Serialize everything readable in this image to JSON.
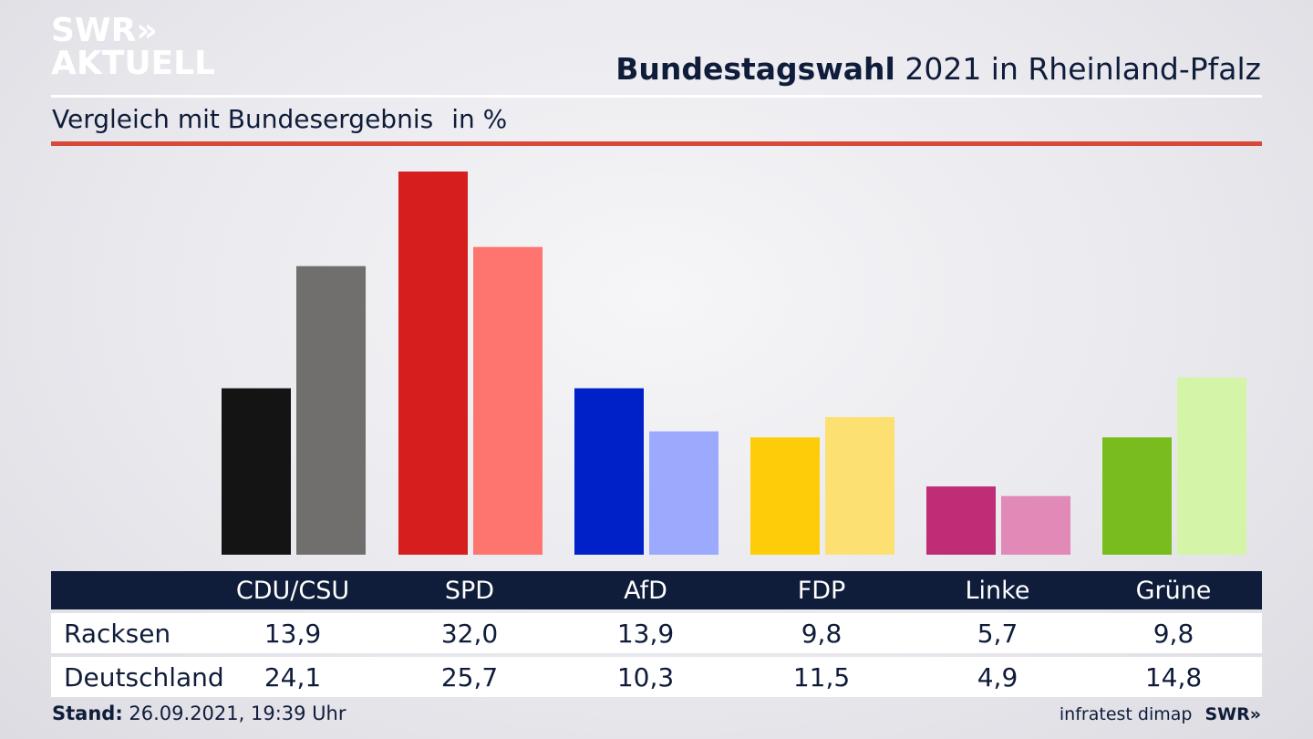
{
  "logo": {
    "line1": "SWR»",
    "line2": "AKTUELL"
  },
  "header": {
    "title_bold": "Bundestagswahl",
    "title_rest": " 2021 in Rheinland-Pfalz",
    "subtitle": "Vergleich mit Bundesergebnis",
    "unit": "in %"
  },
  "chart_data": {
    "type": "bar",
    "categories": [
      "CDU/CSU",
      "SPD",
      "AfD",
      "FDP",
      "Linke",
      "Grüne"
    ],
    "series": [
      {
        "name": "Racksen",
        "values": [
          13.9,
          32.0,
          13.9,
          9.8,
          5.7,
          9.8
        ]
      },
      {
        "name": "Deutschland",
        "values": [
          24.1,
          25.7,
          10.3,
          11.5,
          4.9,
          14.8
        ]
      }
    ],
    "colors": {
      "Racksen": [
        "#141414",
        "#d61e1e",
        "#0020c8",
        "#ffcc0a",
        "#be2d76",
        "#78bc1e"
      ],
      "Deutschland": [
        "#706f6e",
        "#fe7570",
        "#9caafe",
        "#fde072",
        "#e18ab8",
        "#d4f4a8"
      ]
    },
    "ylim": [
      0,
      32
    ],
    "grid": false
  },
  "table": {
    "headers": [
      "CDU/CSU",
      "SPD",
      "AfD",
      "FDP",
      "Linke",
      "Grüne"
    ],
    "rows": [
      {
        "label": "Racksen",
        "values": [
          "13,9",
          "32,0",
          "13,9",
          "9,8",
          "5,7",
          "9,8"
        ]
      },
      {
        "label": "Deutschland",
        "values": [
          "24,1",
          "25,7",
          "10,3",
          "11,5",
          "4,9",
          "14,8"
        ]
      }
    ]
  },
  "footer": {
    "stand_label": "Stand:",
    "stand_value": " 26.09.2021, 19:39 Uhr",
    "source": "infratest dimap",
    "brand": "SWR»"
  }
}
